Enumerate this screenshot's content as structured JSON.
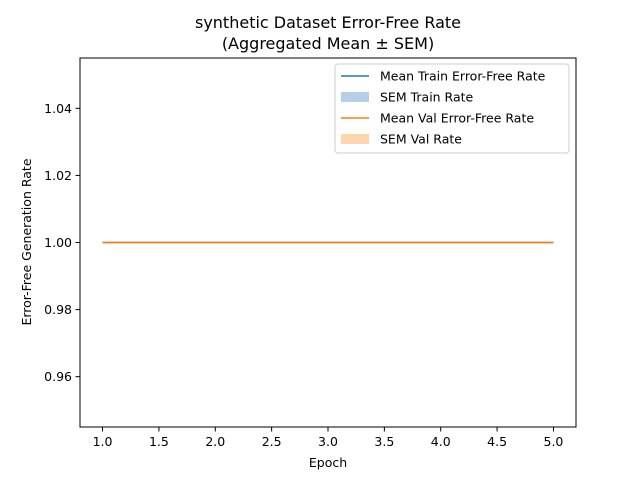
{
  "chart_data": {
    "type": "line",
    "title_line1": "synthetic Dataset Error-Free Rate",
    "title_line2": "(Aggregated Mean ± SEM)",
    "xlabel": "Epoch",
    "ylabel": "Error-Free Generation Rate",
    "xlim": [
      0.8,
      5.2
    ],
    "ylim": [
      0.945,
      1.055
    ],
    "xticks": [
      "1.0",
      "1.5",
      "2.0",
      "2.5",
      "3.0",
      "3.5",
      "4.0",
      "4.5",
      "5.0"
    ],
    "yticks": [
      "0.96",
      "0.98",
      "1.00",
      "1.02",
      "1.04"
    ],
    "x": [
      1,
      2,
      3,
      4,
      5
    ],
    "series": [
      {
        "name": "Mean Train Error-Free Rate",
        "values": [
          1.0,
          1.0,
          1.0,
          1.0,
          1.0
        ],
        "color": "#1f77b4"
      },
      {
        "name": "Mean Val Error-Free Rate",
        "values": [
          1.0,
          1.0,
          1.0,
          1.0,
          1.0
        ],
        "color": "#ff7f0e"
      }
    ],
    "bands": [
      {
        "name": "SEM Train Rate",
        "lower": [
          1.0,
          1.0,
          1.0,
          1.0,
          1.0
        ],
        "upper": [
          1.0,
          1.0,
          1.0,
          1.0,
          1.0
        ],
        "color": "#b4cfe7"
      },
      {
        "name": "SEM Val Rate",
        "lower": [
          1.0,
          1.0,
          1.0,
          1.0,
          1.0
        ],
        "upper": [
          1.0,
          1.0,
          1.0,
          1.0,
          1.0
        ],
        "color": "#ffd5b0"
      }
    ],
    "legend": [
      {
        "label": "Mean Train Error-Free Rate",
        "kind": "line",
        "color": "#1f77b4"
      },
      {
        "label": "SEM Train Rate",
        "kind": "patch",
        "color": "#b4cfe7"
      },
      {
        "label": "Mean Val Error-Free Rate",
        "kind": "line",
        "color": "#ff7f0e"
      },
      {
        "label": "SEM Val Rate",
        "kind": "patch",
        "color": "#ffd5b0"
      }
    ],
    "legend_position": "top-right",
    "grid": false
  }
}
